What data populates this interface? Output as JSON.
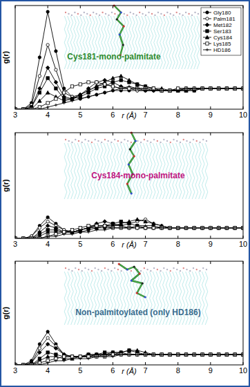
{
  "chart_data": [
    {
      "type": "line",
      "title": "Cys181-mono-palmitate",
      "x_label": "r (Å)",
      "y_label": "g(r)",
      "xlim": [
        3,
        10
      ],
      "xticks": [
        3,
        4,
        5,
        6,
        7,
        8,
        9,
        10
      ],
      "ylim": [
        0,
        5
      ],
      "tick_labels": "x",
      "grid": false,
      "legend": "upper right",
      "x": [
        3,
        3.25,
        3.5,
        3.75,
        4,
        4.25,
        4.5,
        4.75,
        5,
        5.25,
        5.5,
        5.75,
        6,
        6.25,
        6.5,
        6.75,
        7,
        7.25,
        7.5,
        7.75,
        8,
        8.25,
        8.5,
        8.75,
        9,
        9.25,
        9.5,
        9.75,
        10
      ],
      "series": [
        {
          "name": "Gly180",
          "color": "#000000",
          "marker": "circle",
          "values": [
            0,
            0,
            0.3,
            2.5,
            4.7,
            2.8,
            1.0,
            0.6,
            0.5,
            0.6,
            0.7,
            0.8,
            0.9,
            0.9,
            0.9,
            0.9,
            0.9,
            0.9,
            0.9,
            0.9,
            0.9,
            0.9,
            0.9,
            1.0,
            1.0,
            1.0,
            1.0,
            1.0,
            1.0
          ]
        },
        {
          "name": "Palm181",
          "color": "#000000",
          "marker": "circle-open",
          "values": [
            0,
            0,
            0.2,
            1.6,
            3.1,
            1.9,
            0.8,
            0.6,
            0.7,
            0.9,
            1.1,
            1.2,
            1.1,
            1.0,
            1.0,
            0.9,
            0.9,
            0.9,
            0.9,
            0.9,
            1.0,
            1.0,
            1.0,
            1.0,
            1.0,
            1.0,
            1.0,
            1.0,
            1.0
          ]
        },
        {
          "name": "Met182",
          "color": "#000000",
          "marker": "diamond",
          "values": [
            0,
            0,
            0.1,
            1.0,
            2.0,
            1.3,
            0.6,
            0.5,
            0.7,
            1.0,
            1.3,
            1.4,
            1.3,
            1.1,
            1.0,
            1.0,
            0.9,
            0.9,
            0.9,
            0.9,
            0.9,
            1.0,
            1.0,
            1.0,
            1.0,
            1.0,
            1.0,
            1.0,
            1.0
          ]
        },
        {
          "name": "Ser183",
          "color": "#000000",
          "marker": "square",
          "values": [
            0,
            0,
            0.1,
            0.8,
            1.5,
            1.0,
            0.5,
            0.5,
            0.6,
            0.8,
            1.0,
            1.1,
            1.3,
            1.4,
            1.3,
            1.2,
            1.1,
            1.0,
            0.9,
            0.9,
            0.9,
            0.9,
            0.9,
            1.0,
            1.0,
            1.0,
            1.0,
            1.0,
            1.0
          ]
        },
        {
          "name": "Cys184",
          "color": "#000000",
          "marker": "triangle",
          "values": [
            0,
            0,
            0,
            0.4,
            0.8,
            0.6,
            0.4,
            0.5,
            0.7,
            0.9,
            1.1,
            1.3,
            1.5,
            1.6,
            1.4,
            1.2,
            1.1,
            1.0,
            1.0,
            0.9,
            0.9,
            0.9,
            1.0,
            1.0,
            1.0,
            1.0,
            1.0,
            1.0,
            1.0
          ]
        },
        {
          "name": "Lys185",
          "color": "#000000",
          "marker": "square-open",
          "values": [
            0,
            0,
            0,
            0.1,
            0.3,
            0.5,
            0.8,
            1.1,
            1.2,
            1.3,
            1.3,
            1.2,
            1.1,
            1.0,
            1.0,
            1.0,
            1.0,
            1.0,
            0.9,
            0.9,
            1.0,
            1.0,
            1.0,
            1.0,
            1.0,
            1.0,
            1.0,
            1.0,
            1.0
          ]
        },
        {
          "name": "HD186",
          "color": "#000000",
          "marker": "plus",
          "values": [
            0,
            0,
            0,
            0,
            0.1,
            0.2,
            0.3,
            0.4,
            0.5,
            0.6,
            0.7,
            0.8,
            0.9,
            1.0,
            1.1,
            1.0,
            1.0,
            0.9,
            0.9,
            0.9,
            0.9,
            1.0,
            1.0,
            1.0,
            1.0,
            1.0,
            1.0,
            1.0,
            1.0
          ]
        }
      ]
    },
    {
      "type": "line",
      "title": "Cys184-mono-palmitate",
      "x_label": "r (Å)",
      "y_label": "g(r)",
      "xlim": [
        3,
        10
      ],
      "xticks": [
        3,
        4,
        5,
        6,
        7,
        8,
        9,
        10
      ],
      "ylim": [
        0,
        5
      ],
      "tick_labels": "x",
      "grid": false,
      "x": [
        3,
        3.25,
        3.5,
        3.75,
        4,
        4.25,
        4.5,
        4.75,
        5,
        5.25,
        5.5,
        5.75,
        6,
        6.25,
        6.5,
        6.75,
        7,
        7.25,
        7.5,
        7.75,
        8,
        8.25,
        8.5,
        8.75,
        9,
        9.25,
        9.5,
        9.75,
        10
      ],
      "series": [
        {
          "name": "Gly180",
          "color": "#000000",
          "marker": "circle",
          "values": [
            0,
            0,
            0.1,
            0.6,
            1.0,
            0.7,
            0.4,
            0.3,
            0.3,
            0.4,
            0.5,
            0.5,
            0.5,
            0.5,
            0.5,
            0.5,
            0.5,
            0.5,
            0.5,
            0.5,
            0.5,
            0.5,
            0.5,
            0.5,
            0.5,
            0.5,
            0.5,
            0.5,
            0.5
          ]
        },
        {
          "name": "Palm181",
          "color": "#000000",
          "marker": "circle-open",
          "values": [
            0,
            0,
            0.1,
            0.5,
            0.8,
            0.6,
            0.4,
            0.3,
            0.4,
            0.5,
            0.6,
            0.6,
            0.6,
            0.6,
            0.7,
            0.8,
            0.9,
            0.7,
            0.6,
            0.5,
            0.5,
            0.5,
            0.5,
            0.5,
            0.5,
            0.5,
            0.5,
            0.5,
            0.5
          ]
        },
        {
          "name": "Met182",
          "color": "#000000",
          "marker": "diamond",
          "values": [
            0,
            0,
            0,
            0.3,
            0.6,
            0.5,
            0.3,
            0.3,
            0.4,
            0.5,
            0.7,
            0.8,
            0.7,
            0.6,
            0.5,
            0.5,
            0.5,
            0.5,
            0.5,
            0.5,
            0.5,
            0.5,
            0.5,
            0.5,
            0.5,
            0.5,
            0.5,
            0.5,
            0.5
          ]
        },
        {
          "name": "Ser183",
          "color": "#000000",
          "marker": "square",
          "values": [
            0,
            0,
            0,
            0.2,
            0.4,
            0.4,
            0.3,
            0.3,
            0.4,
            0.5,
            0.6,
            0.6,
            0.7,
            0.8,
            0.7,
            0.6,
            0.5,
            0.5,
            0.5,
            0.5,
            0.5,
            0.5,
            0.5,
            0.5,
            0.5,
            0.5,
            0.5,
            0.5,
            0.5
          ]
        },
        {
          "name": "Cys184",
          "color": "#000000",
          "marker": "triangle",
          "values": [
            0,
            0,
            0,
            0.1,
            0.3,
            0.3,
            0.3,
            0.3,
            0.4,
            0.5,
            0.5,
            0.6,
            0.6,
            0.7,
            0.8,
            0.9,
            0.8,
            0.7,
            0.6,
            0.5,
            0.5,
            0.5,
            0.5,
            0.5,
            0.5,
            0.5,
            0.5,
            0.5,
            0.5
          ]
        },
        {
          "name": "Lys185",
          "color": "#000000",
          "marker": "square-open",
          "values": [
            0,
            0,
            0,
            0,
            0.1,
            0.2,
            0.3,
            0.4,
            0.5,
            0.6,
            0.6,
            0.6,
            0.5,
            0.5,
            0.5,
            0.5,
            0.5,
            0.5,
            0.5,
            0.5,
            0.5,
            0.5,
            0.5,
            0.5,
            0.5,
            0.5,
            0.5,
            0.5,
            0.5
          ]
        },
        {
          "name": "HD186",
          "color": "#000000",
          "marker": "plus",
          "values": [
            0,
            0,
            0,
            0,
            0.1,
            0.1,
            0.2,
            0.2,
            0.3,
            0.3,
            0.4,
            0.4,
            0.5,
            0.5,
            0.5,
            0.6,
            0.6,
            0.6,
            0.5,
            0.5,
            0.5,
            0.5,
            0.5,
            0.5,
            0.5,
            0.5,
            0.5,
            0.5,
            0.5
          ]
        }
      ]
    },
    {
      "type": "line",
      "title": "Non-palmitoylated (only HD186)",
      "x_label": "r (Å)",
      "y_label": "g(r)",
      "xlim": [
        3,
        10
      ],
      "xticks": [
        3,
        4,
        5,
        6,
        7,
        8,
        9,
        10
      ],
      "ylim": [
        0,
        5
      ],
      "tick_labels": "x",
      "grid": false,
      "x": [
        3,
        3.25,
        3.5,
        3.75,
        4,
        4.25,
        4.5,
        4.75,
        5,
        5.25,
        5.5,
        5.75,
        6,
        6.25,
        6.5,
        6.75,
        7,
        7.25,
        7.5,
        7.75,
        8,
        8.25,
        8.5,
        8.75,
        9,
        9.25,
        9.5,
        9.75,
        10
      ],
      "series": [
        {
          "name": "Gly180",
          "color": "#000000",
          "marker": "circle",
          "values": [
            0,
            0,
            0.2,
            1.0,
            1.6,
            1.0,
            0.5,
            0.4,
            0.4,
            0.4,
            0.4,
            0.5,
            0.5,
            0.5,
            0.5,
            0.5,
            0.5,
            0.5,
            0.5,
            0.5,
            0.5,
            0.5,
            0.5,
            0.5,
            0.5,
            0.5,
            0.5,
            0.5,
            0.5
          ]
        },
        {
          "name": "Palm181",
          "color": "#000000",
          "marker": "circle-open",
          "values": [
            0,
            0,
            0.1,
            0.8,
            1.3,
            0.9,
            0.5,
            0.4,
            0.4,
            0.4,
            0.5,
            0.5,
            0.5,
            0.5,
            0.5,
            0.5,
            0.5,
            0.5,
            0.5,
            0.5,
            0.5,
            0.5,
            0.5,
            0.5,
            0.5,
            0.5,
            0.5,
            0.5,
            0.5
          ]
        },
        {
          "name": "Met182",
          "color": "#000000",
          "marker": "diamond",
          "values": [
            0,
            0,
            0.1,
            0.6,
            1.0,
            0.8,
            0.5,
            0.4,
            0.4,
            0.5,
            0.5,
            0.5,
            0.6,
            0.6,
            0.5,
            0.5,
            0.5,
            0.5,
            0.5,
            0.5,
            0.5,
            0.5,
            0.5,
            0.5,
            0.5,
            0.5,
            0.5,
            0.5,
            0.5
          ]
        },
        {
          "name": "Ser183",
          "color": "#000000",
          "marker": "square",
          "values": [
            0,
            0,
            0,
            0.3,
            0.6,
            0.5,
            0.4,
            0.4,
            0.4,
            0.5,
            0.5,
            0.6,
            0.6,
            0.6,
            0.7,
            0.6,
            0.5,
            0.5,
            0.5,
            0.5,
            0.5,
            0.5,
            0.5,
            0.5,
            0.5,
            0.5,
            0.5,
            0.5,
            0.5
          ]
        },
        {
          "name": "Cys184",
          "color": "#000000",
          "marker": "triangle",
          "values": [
            0,
            0,
            0,
            0.2,
            0.4,
            0.4,
            0.3,
            0.3,
            0.4,
            0.4,
            0.5,
            0.5,
            0.5,
            0.6,
            0.7,
            0.7,
            0.6,
            0.5,
            0.5,
            0.5,
            0.5,
            0.5,
            0.5,
            0.5,
            0.5,
            0.5,
            0.5,
            0.5,
            0.5
          ]
        },
        {
          "name": "Lys185",
          "color": "#000000",
          "marker": "square-open",
          "values": [
            0,
            0,
            0,
            0.1,
            0.2,
            0.3,
            0.4,
            0.4,
            0.4,
            0.4,
            0.4,
            0.4,
            0.5,
            0.5,
            0.5,
            0.5,
            0.5,
            0.5,
            0.5,
            0.5,
            0.5,
            0.5,
            0.5,
            0.5,
            0.5,
            0.5,
            0.5,
            0.5,
            0.5
          ]
        },
        {
          "name": "HD186",
          "color": "#000000",
          "marker": "plus",
          "values": [
            0,
            0,
            0,
            0,
            0.1,
            0.2,
            0.2,
            0.3,
            0.3,
            0.3,
            0.4,
            0.4,
            0.4,
            0.5,
            0.5,
            0.5,
            0.5,
            0.5,
            0.5,
            0.5,
            0.5,
            0.5,
            0.5,
            0.5,
            0.5,
            0.5,
            0.5,
            0.5,
            0.5
          ]
        }
      ]
    }
  ]
}
